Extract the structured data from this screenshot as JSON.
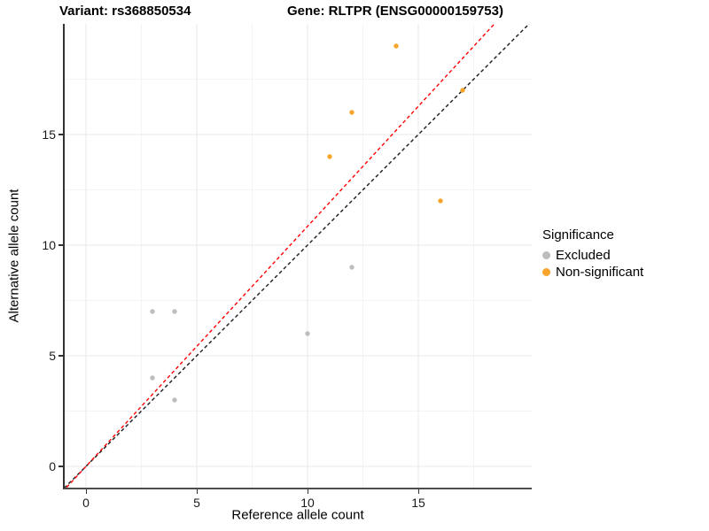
{
  "titles": {
    "left": "Variant: rs368850534",
    "right": "Gene: RLTPR (ENSG00000159753)"
  },
  "axes": {
    "x_label": "Reference allele count",
    "y_label": "Alternative allele count"
  },
  "legend": {
    "title": "Significance",
    "items": [
      {
        "label": "Excluded",
        "color": "#BDBDBD"
      },
      {
        "label": "Non-significant",
        "color": "#F9A42B"
      }
    ]
  },
  "chart_data": {
    "type": "scatter",
    "xlabel": "Reference allele count",
    "ylabel": "Alternative allele count",
    "xlim": [
      -0.96,
      20.12
    ],
    "ylim": [
      -0.96,
      20.0
    ],
    "x_major_ticks": [
      0,
      5,
      10,
      15
    ],
    "y_major_ticks": [
      0,
      5,
      10,
      15
    ],
    "x_minor_ticks": [
      2.5,
      7.5,
      12.5,
      17.5
    ],
    "y_minor_ticks": [
      2.5,
      7.5,
      12.5,
      17.5
    ],
    "grid": true,
    "legend_position": "right",
    "series": [
      {
        "name": "Excluded",
        "color": "#BDBDBD",
        "points": [
          [
            3,
            4
          ],
          [
            3,
            7
          ],
          [
            4,
            3
          ],
          [
            4,
            7
          ],
          [
            10,
            6
          ],
          [
            12,
            9
          ]
        ]
      },
      {
        "name": "Non-significant",
        "color": "#F9A42B",
        "points": [
          [
            11,
            14
          ],
          [
            12,
            16
          ],
          [
            14,
            19
          ],
          [
            16,
            12
          ],
          [
            17,
            17
          ]
        ]
      }
    ],
    "lines": [
      {
        "name": "identity-line",
        "slope": 1.0,
        "intercept": 0,
        "color": "#1A1A1A",
        "style": "dashed"
      },
      {
        "name": "ratio-line",
        "slope": 1.085,
        "intercept": 0,
        "color": "#FF0000",
        "style": "dashed"
      }
    ],
    "colors": {
      "grid_major": "#E8E8E8",
      "grid_minor": "#F4F4F4",
      "axis_line": "#333333"
    }
  }
}
